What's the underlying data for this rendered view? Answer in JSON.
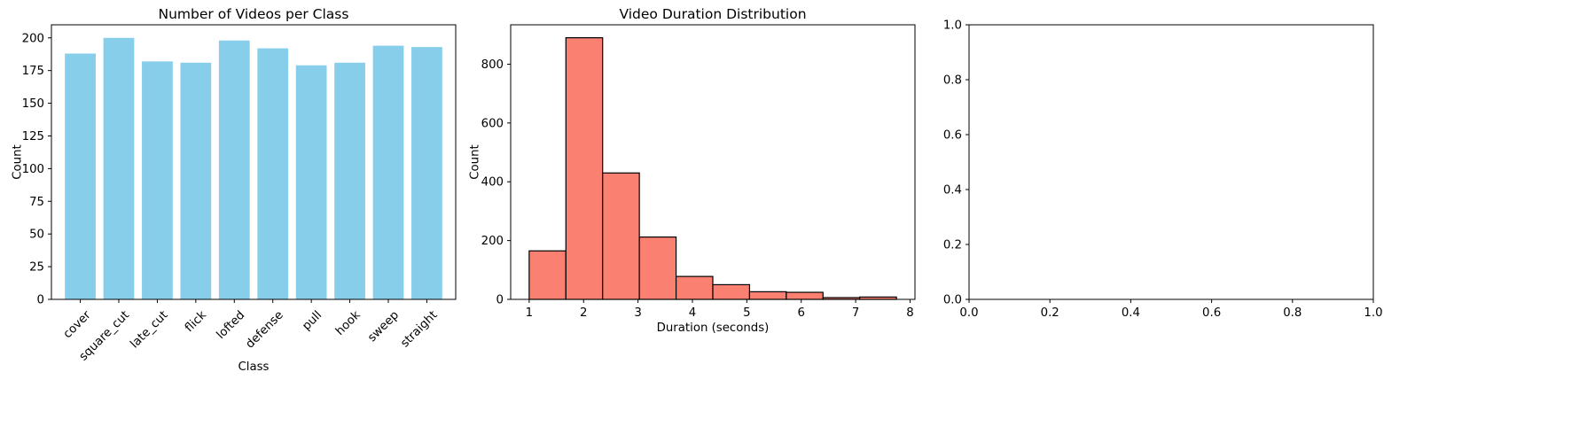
{
  "chart_data": [
    {
      "type": "bar",
      "title": "Number of Videos per Class",
      "xlabel": "Class",
      "ylabel": "Count",
      "categories": [
        "cover",
        "square_cut",
        "late_cut",
        "flick",
        "lofted",
        "defense",
        "pull",
        "hook",
        "sweep",
        "straight"
      ],
      "values": [
        188,
        200,
        182,
        181,
        198,
        192,
        179,
        181,
        194,
        193
      ],
      "ylim": [
        0,
        210
      ],
      "yticks": [
        "0",
        "25",
        "50",
        "75",
        "100",
        "125",
        "150",
        "175",
        "200"
      ],
      "xtick_rotation": 45,
      "color": "#87CEEB",
      "grid": false
    },
    {
      "type": "histogram",
      "title": "Video Duration Distribution",
      "xlabel": "Duration (seconds)",
      "ylabel": "Count",
      "bin_edges": [
        1.0,
        1.675,
        2.35,
        3.025,
        3.7,
        4.375,
        5.05,
        5.725,
        6.4,
        7.075,
        7.75
      ],
      "counts": [
        165,
        890,
        430,
        212,
        78,
        50,
        26,
        24,
        6,
        8
      ],
      "xlim": [
        0.66,
        8.09
      ],
      "ylim": [
        0,
        934
      ],
      "xticks": [
        "1",
        "2",
        "3",
        "4",
        "5",
        "6",
        "7",
        "8"
      ],
      "yticks": [
        "0",
        "200",
        "400",
        "600",
        "800"
      ],
      "color": "#FA8072",
      "edgecolor": "#000000",
      "grid": false
    },
    {
      "type": "empty",
      "title": "",
      "xlim": [
        0,
        1
      ],
      "ylim": [
        0,
        1
      ],
      "xticks": [
        "0.0",
        "0.2",
        "0.4",
        "0.6",
        "0.8",
        "1.0"
      ],
      "yticks": [
        "0.0",
        "0.2",
        "0.4",
        "0.6",
        "0.8",
        "1.0"
      ],
      "grid": false
    }
  ]
}
